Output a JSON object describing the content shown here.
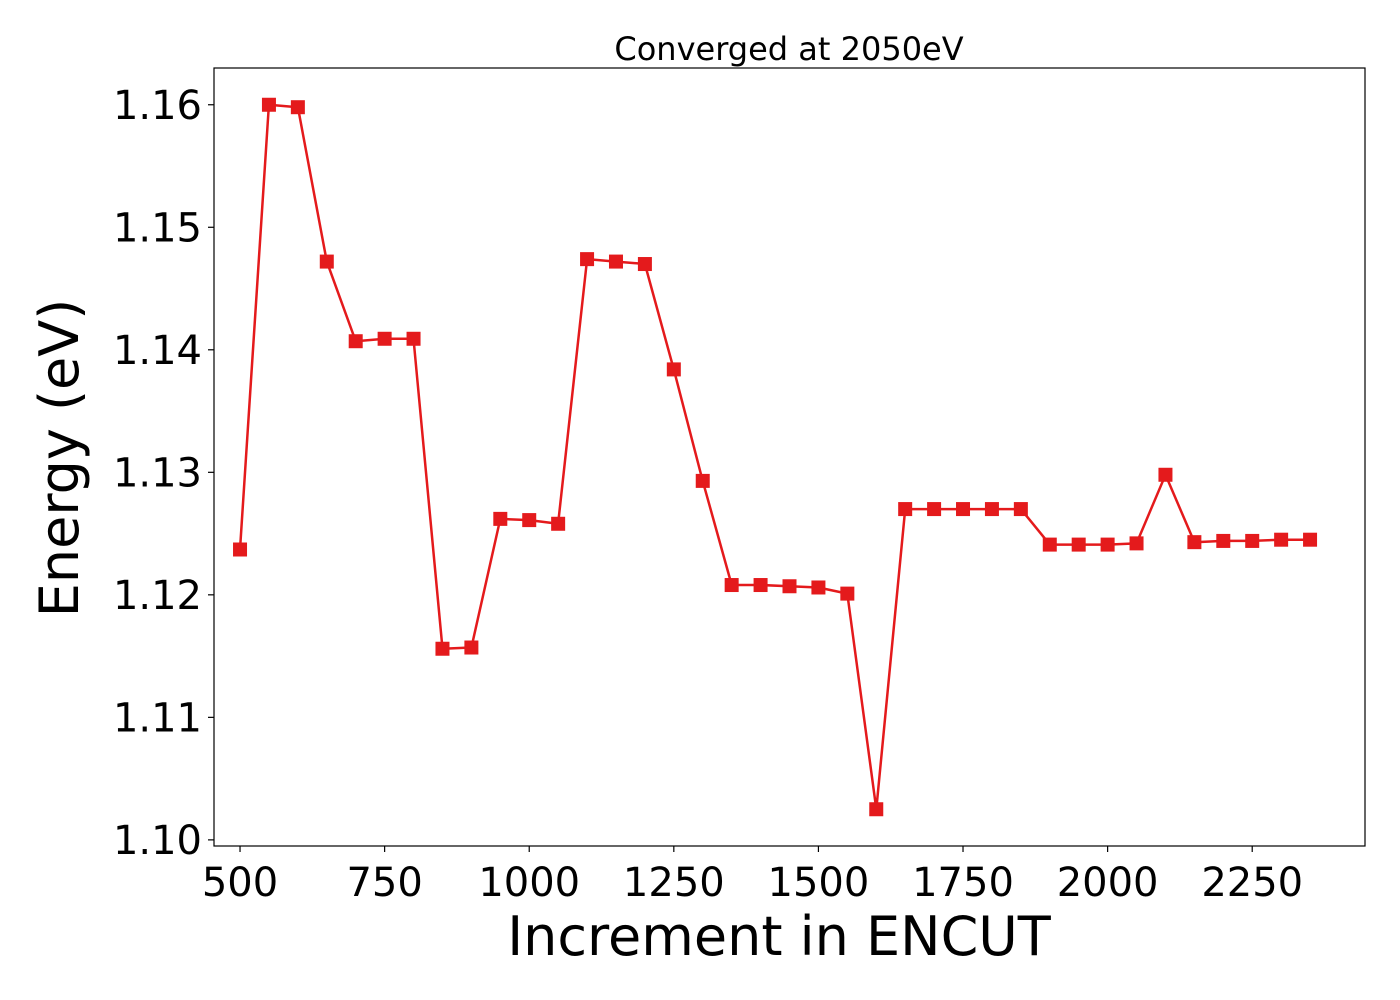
{
  "chart_data": {
    "type": "line",
    "title": "Converged at 2050eV",
    "xlabel": "Increment in ENCUT",
    "ylabel": "Energy (eV)",
    "xlim": [
      455,
      2445
    ],
    "ylim": [
      1.0995,
      1.163
    ],
    "xticks": [
      500,
      750,
      1000,
      1250,
      1500,
      1750,
      2000,
      2250
    ],
    "yticks": [
      1.1,
      1.11,
      1.12,
      1.13,
      1.14,
      1.15,
      1.16
    ],
    "ytick_labels": [
      "1.10",
      "1.11",
      "1.12",
      "1.13",
      "1.14",
      "1.15",
      "1.16"
    ],
    "grid": false,
    "series": [
      {
        "color": "#e41a1c",
        "marker": "square",
        "x": [
          500,
          550,
          600,
          650,
          700,
          750,
          800,
          850,
          900,
          950,
          1000,
          1050,
          1100,
          1150,
          1200,
          1250,
          1300,
          1350,
          1400,
          1450,
          1500,
          1550,
          1600,
          1650,
          1700,
          1750,
          1800,
          1850,
          1900,
          1950,
          2000,
          2050,
          2100,
          2150,
          2200,
          2250,
          2300,
          2350
        ],
        "y": [
          1.1237,
          1.16,
          1.1598,
          1.1472,
          1.1407,
          1.1409,
          1.1409,
          1.1156,
          1.1157,
          1.1262,
          1.1261,
          1.1258,
          1.1474,
          1.1472,
          1.147,
          1.1384,
          1.1293,
          1.1208,
          1.1208,
          1.1207,
          1.1206,
          1.1201,
          1.1025,
          1.127,
          1.127,
          1.127,
          1.127,
          1.127,
          1.1241,
          1.1241,
          1.1241,
          1.1242,
          1.1298,
          1.1243,
          1.1244,
          1.1244,
          1.1245,
          1.1245
        ]
      }
    ]
  }
}
